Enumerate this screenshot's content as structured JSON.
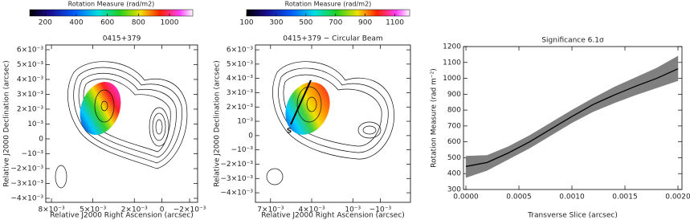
{
  "chart_data": [
    {
      "type": "image",
      "title": "0415+379",
      "colorbar": {
        "label": "Rotation Measure (rad/m2)",
        "lim": [
          100,
          1150
        ],
        "ticks": [
          200,
          400,
          600,
          800,
          1000
        ]
      },
      "x_label": "Relative J2000 Right Ascension (arcsec)",
      "y_label": "Relative J2000 Declination (arcsec)",
      "xlim": [
        0.00841,
        -0.00258
      ],
      "xticks": [
        {
          "value": 0.008,
          "label": "8×10⁻³"
        },
        {
          "value": 0.005,
          "label": "5×10⁻³"
        },
        {
          "value": 0.002,
          "label": "2×10⁻³"
        },
        0,
        {
          "value": -0.002,
          "label": "−2×10⁻³"
        }
      ],
      "ylim": [
        -0.00427,
        0.00632
      ],
      "yticks": [
        {
          "value": 0.006,
          "label": "6×10⁻³"
        },
        {
          "value": 0.005,
          "label": "5×10⁻³"
        },
        {
          "value": 0.004,
          "label": "4×10⁻³"
        },
        {
          "value": 0.003,
          "label": "3×10⁻³"
        },
        {
          "value": 0.002,
          "label": "2×10⁻³"
        },
        {
          "value": 0.001,
          "label": "10⁻³"
        },
        0,
        {
          "value": -0.001,
          "label": "−10⁻³"
        },
        {
          "value": -0.002,
          "label": "−2×10⁻³"
        },
        {
          "value": -0.003,
          "label": "−3×10⁻³"
        },
        {
          "value": -0.004,
          "label": "−4×10⁻³"
        }
      ]
    },
    {
      "type": "image",
      "title": "0415+379 − Circular Beam",
      "annotation": "S",
      "colorbar": {
        "label": "Rotation Measure (rad/m2)",
        "lim": [
          100,
          1200
        ],
        "ticks": [
          100,
          300,
          500,
          700,
          900,
          1100
        ]
      },
      "x_label": "Relative J2000 Right Ascension (arcsec)",
      "y_label": "Relative J2000 Declination (arcsec)",
      "xlim": [
        0.0081,
        -0.0032
      ],
      "xticks": [
        {
          "value": 0.007,
          "label": "7×10⁻³"
        },
        {
          "value": 0.004,
          "label": "4×10⁻³"
        },
        {
          "value": 0.001,
          "label": "10⁻³"
        },
        {
          "value": -0.001,
          "label": "−10⁻³"
        }
      ],
      "ylim": [
        -0.00467,
        0.00634
      ],
      "yticks": [
        {
          "value": 0.006,
          "label": "6×10⁻³"
        },
        {
          "value": 0.005,
          "label": "5×10⁻³"
        },
        {
          "value": 0.004,
          "label": "4×10⁻³"
        },
        {
          "value": 0.003,
          "label": "3×10⁻³"
        },
        {
          "value": 0.002,
          "label": "2×10⁻³"
        },
        {
          "value": 0.001,
          "label": "10⁻³"
        },
        0,
        {
          "value": -0.001,
          "label": "−10⁻³"
        },
        {
          "value": -0.002,
          "label": "−2×10⁻³"
        },
        {
          "value": -0.003,
          "label": "−3×10⁻³"
        },
        {
          "value": -0.004,
          "label": "−4×10⁻³"
        }
      ]
    },
    {
      "type": "line",
      "title": "Significance 6.1σ",
      "x_label": "Transverse Slice (arcsec)",
      "y_label": "Rotation Measure (rad m⁻²)",
      "x": [
        0,
        0.0002,
        0.0004,
        0.0006,
        0.0008,
        0.001,
        0.0012,
        0.0014,
        0.0016,
        0.0018,
        0.002
      ],
      "values": [
        445,
        470,
        530,
        600,
        680,
        760,
        835,
        895,
        950,
        1000,
        1060
      ],
      "lower": [
        375,
        420,
        490,
        560,
        640,
        720,
        790,
        845,
        895,
        940,
        985
      ],
      "upper": [
        510,
        515,
        570,
        640,
        720,
        800,
        875,
        945,
        1005,
        1065,
        1140
      ],
      "color": "#000000",
      "band_color": "#808080",
      "xlim": [
        -2.3e-05,
        0.002038
      ],
      "xticks": [
        {
          "value": 0,
          "label": "0.0000"
        },
        {
          "value": 0.0005,
          "label": "0.0005"
        },
        {
          "value": 0.001,
          "label": "0.0010"
        },
        {
          "value": 0.0015,
          "label": "0.0015"
        },
        {
          "value": 0.002,
          "label": "0.0020"
        }
      ],
      "ylim": [
        300,
        1200
      ],
      "yticks": [
        300,
        400,
        500,
        600,
        700,
        800,
        900,
        1000,
        1100,
        1200
      ]
    }
  ]
}
